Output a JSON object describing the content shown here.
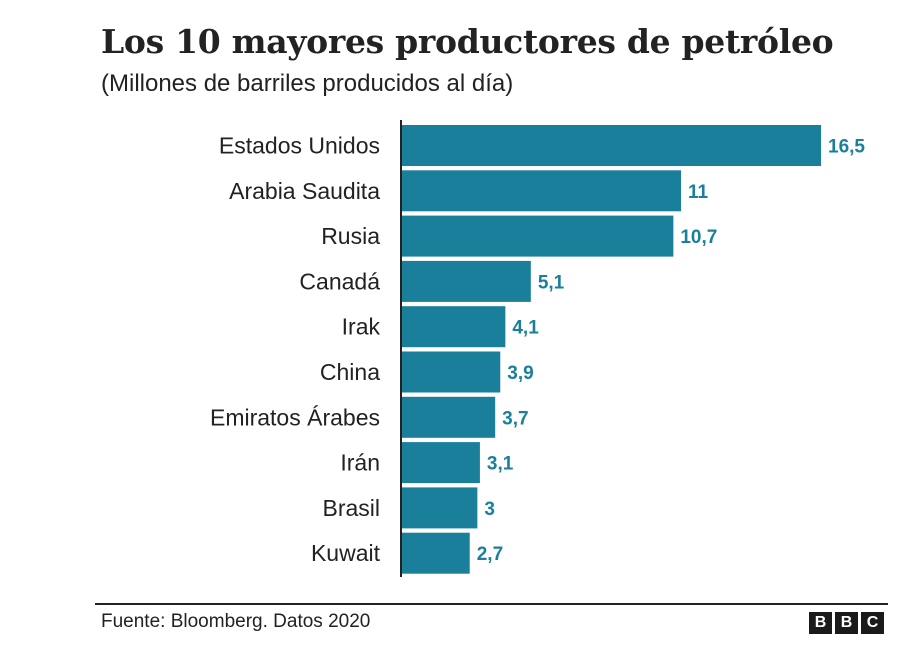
{
  "chart_data": {
    "type": "bar",
    "orientation": "horizontal",
    "title": "Los 10 mayores productores de petróleo",
    "subtitle": "(Millones de barriles producidos al día)",
    "categories": [
      "Estados Unidos",
      "Arabia Saudita",
      "Rusia",
      "Canadá",
      "Irak",
      "China",
      "Emiratos Árabes",
      "Irán",
      "Brasil",
      "Kuwait"
    ],
    "values": [
      16.5,
      11,
      10.7,
      5.1,
      4.1,
      3.9,
      3.7,
      3.1,
      3,
      2.7
    ],
    "value_labels": [
      "16,5",
      "11",
      "10,7",
      "5,1",
      "4,1",
      "3,9",
      "3,7",
      "3,1",
      "3",
      "2,7"
    ],
    "xlabel": "",
    "ylabel": "",
    "xlim": [
      0,
      16.5
    ],
    "grid": false,
    "bar_color": "#1a7f9b",
    "label_color": "#1a7f9b"
  },
  "footer": {
    "source": "Fuente: Bloomberg. Datos 2020",
    "logo_letters": [
      "B",
      "B",
      "C"
    ]
  }
}
